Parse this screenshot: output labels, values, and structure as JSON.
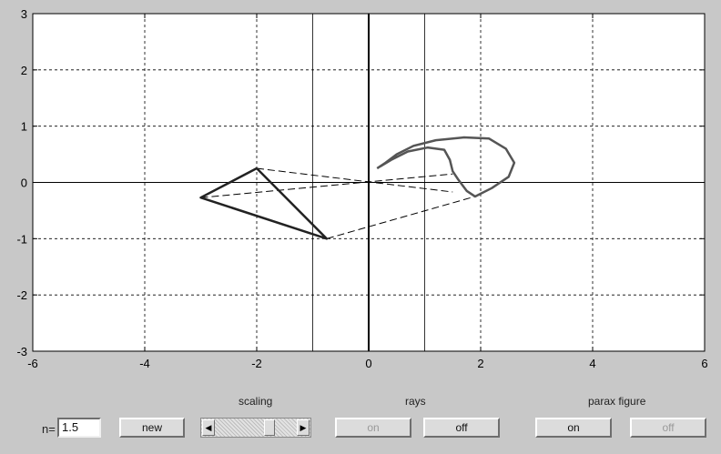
{
  "chart_data": {
    "type": "line",
    "xlim": [
      -6,
      6
    ],
    "ylim": [
      -3,
      3
    ],
    "x_ticks": [
      -6,
      -4,
      -2,
      0,
      2,
      4,
      6
    ],
    "y_ticks": [
      -3,
      -2,
      -1,
      0,
      1,
      2,
      3
    ],
    "x_tick_labels": [
      "-6",
      "-4",
      "-2",
      "0",
      "2",
      "4",
      "6"
    ],
    "y_tick_labels": [
      "-3",
      "-2",
      "-1",
      "0",
      "1",
      "2",
      "3"
    ],
    "grid": true,
    "vertical_lines": [
      -1,
      1
    ],
    "object": [
      [
        -2,
        0.25
      ],
      [
        -3,
        -0.27
      ],
      [
        -0.75,
        -1
      ],
      [
        -2,
        0.25
      ]
    ],
    "rays": [
      [
        [
          -2,
          0.25
        ],
        [
          1.5,
          -0.17
        ]
      ],
      [
        [
          -3,
          -0.27
        ],
        [
          1.5,
          0.15
        ]
      ],
      [
        [
          -0.75,
          -1
        ],
        [
          1.9,
          -0.25
        ]
      ]
    ],
    "image_curve": [
      [
        0.15,
        0.25
      ],
      [
        0.3,
        0.35
      ],
      [
        0.5,
        0.5
      ],
      [
        0.8,
        0.65
      ],
      [
        1.2,
        0.75
      ],
      [
        1.7,
        0.8
      ],
      [
        2.15,
        0.78
      ],
      [
        2.45,
        0.6
      ],
      [
        2.6,
        0.35
      ],
      [
        2.5,
        0.1
      ],
      [
        2.2,
        -0.1
      ],
      [
        1.9,
        -0.25
      ],
      [
        1.75,
        -0.15
      ],
      [
        1.6,
        0.05
      ],
      [
        1.5,
        0.2
      ],
      [
        1.45,
        0.4
      ],
      [
        1.35,
        0.58
      ],
      [
        1.05,
        0.62
      ],
      [
        0.7,
        0.55
      ],
      [
        0.4,
        0.4
      ],
      [
        0.2,
        0.28
      ]
    ]
  },
  "controls": {
    "n_label": "n=",
    "n_value": "1.5",
    "new_label": "new",
    "scaling_label": "scaling",
    "scaling_position": 0.7,
    "rays_label": "rays",
    "rays_on_label": "on",
    "rays_off_label": "off",
    "parax_label": "parax figure",
    "parax_on_label": "on",
    "parax_off_label": "off"
  }
}
